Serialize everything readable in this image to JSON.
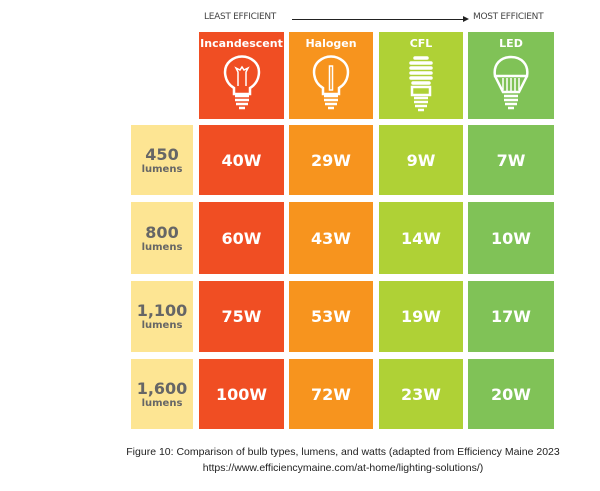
{
  "chart_data": {
    "type": "table",
    "scale_labels": {
      "left": "LEAST EFFICIENT",
      "right": "MOST EFFICIENT"
    },
    "columns": [
      {
        "label": "Incandescent",
        "icon": "incandescent-bulb-icon",
        "color": "#f04e23"
      },
      {
        "label": "Halogen",
        "icon": "halogen-bulb-icon",
        "color": "#f7941e"
      },
      {
        "label": "CFL",
        "icon": "cfl-bulb-icon",
        "color": "#afd136"
      },
      {
        "label": "LED",
        "icon": "led-bulb-icon",
        "color": "#80c257"
      }
    ],
    "row_label_color": "#fde593",
    "rows": [
      {
        "lumens": "450",
        "unit": "lumens",
        "values": [
          "40W",
          "29W",
          "9W",
          "7W"
        ]
      },
      {
        "lumens": "800",
        "unit": "lumens",
        "values": [
          "60W",
          "43W",
          "14W",
          "10W"
        ]
      },
      {
        "lumens": "1,100",
        "unit": "lumens",
        "values": [
          "75W",
          "53W",
          "19W",
          "17W"
        ]
      },
      {
        "lumens": "1,600",
        "unit": "lumens",
        "values": [
          "100W",
          "72W",
          "23W",
          "20W"
        ]
      }
    ]
  },
  "caption": {
    "line1": "Figure 10: Comparison of bulb types, lumens, and watts (adapted from Efficiency Maine 2023",
    "line2": "https://www.efficiencymaine.com/at-home/lighting-solutions/)"
  }
}
